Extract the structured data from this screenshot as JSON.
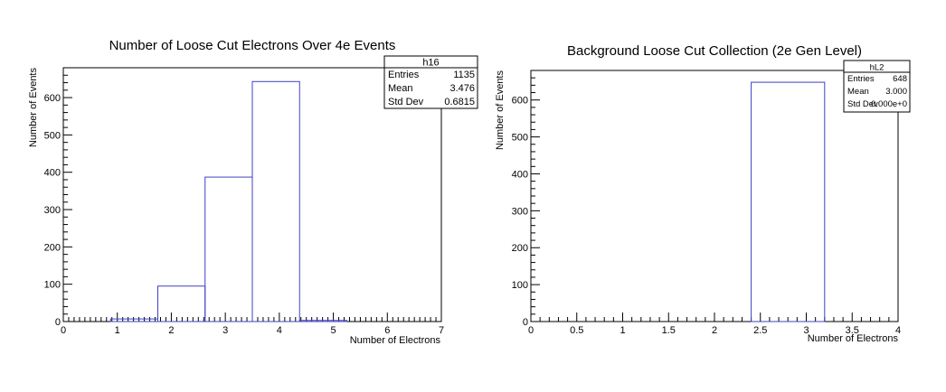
{
  "colors": {
    "histogram": "#4040c0",
    "axis": "#000000",
    "background": "#ffffff"
  },
  "chart_data": [
    {
      "type": "bar",
      "histogram_style": "step",
      "title": "Number of Loose Cut Electrons Over 4e Events",
      "xlabel": "Number of Electrons",
      "ylabel": "Number of Events",
      "xlim": [
        0,
        7
      ],
      "ylim": [
        0,
        680
      ],
      "x_ticks": [
        "0",
        "1",
        "2",
        "3",
        "4",
        "5",
        "6",
        "7"
      ],
      "y_ticks": [
        "0",
        "100",
        "200",
        "300",
        "400",
        "500",
        "600"
      ],
      "bin_edges": [
        0.875,
        1.75,
        2.625,
        3.5,
        4.375,
        5.25
      ],
      "values": [
        7,
        95,
        387,
        643,
        3
      ],
      "stats": {
        "name": "h16",
        "rows": [
          {
            "label": "Entries",
            "value": "1135"
          },
          {
            "label": "Mean",
            "value": "3.476"
          },
          {
            "label": "Std Dev",
            "value": "0.6815"
          }
        ]
      }
    },
    {
      "type": "bar",
      "histogram_style": "step",
      "title": "Background Loose Cut Collection (2e Gen Level)",
      "xlabel": "Number of Electrons",
      "ylabel": "Number of Events",
      "xlim": [
        0,
        4
      ],
      "ylim": [
        0,
        680
      ],
      "x_ticks": [
        "0",
        "0.5",
        "1",
        "1.5",
        "2",
        "2.5",
        "3",
        "3.5",
        "4"
      ],
      "y_ticks": [
        "0",
        "100",
        "200",
        "300",
        "400",
        "500",
        "600"
      ],
      "bin_edges": [
        2.4,
        3.2
      ],
      "values": [
        648
      ],
      "stats": {
        "name": "hL2",
        "rows": [
          {
            "label": "Entries",
            "value": "648"
          },
          {
            "label": "Mean",
            "value": "3.000"
          },
          {
            "label": "Std Dev",
            "value": "0.000e+0"
          }
        ]
      }
    }
  ]
}
